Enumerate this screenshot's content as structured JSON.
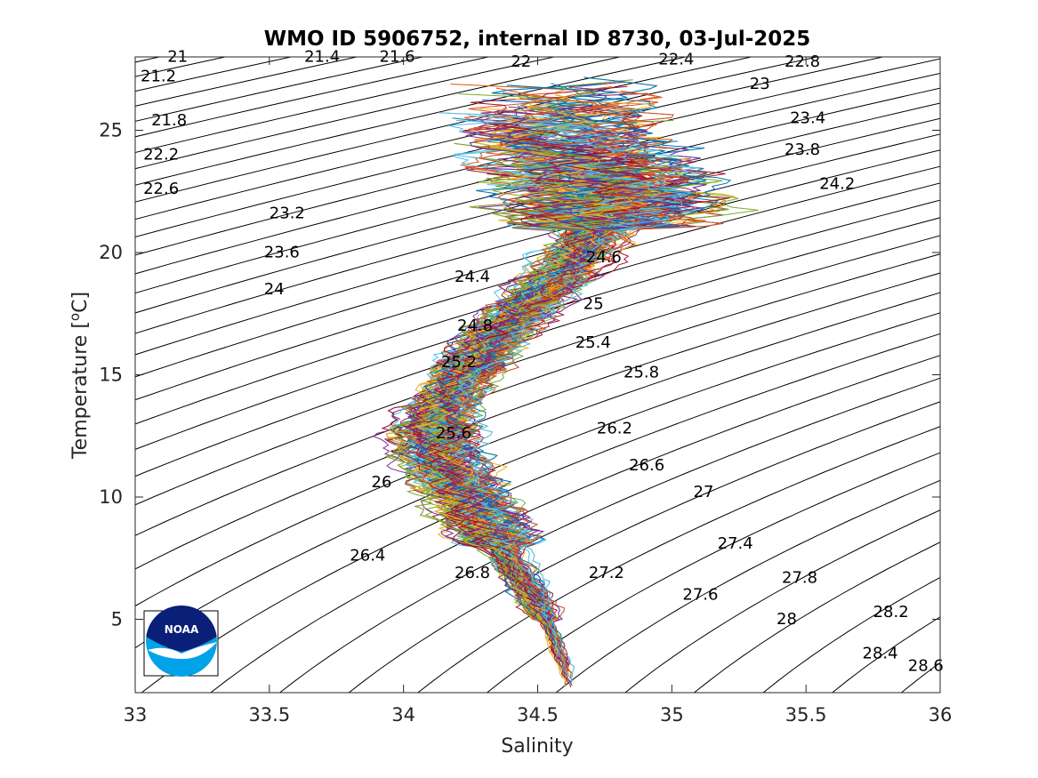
{
  "chart_data": {
    "type": "line",
    "title": "WMO ID 5906752, internal ID 8730, 03-Jul-2025",
    "xlabel": "Salinity",
    "ylabel_main": "Temperature [",
    "ylabel_sup": "o",
    "ylabel_end": "C]",
    "xlim": [
      33,
      36
    ],
    "ylim": [
      2,
      28
    ],
    "xticks": [
      33,
      33.5,
      34,
      34.5,
      35,
      35.5,
      36
    ],
    "xtick_labels": [
      "33",
      "33.5",
      "34",
      "34.5",
      "35",
      "35.5",
      "36"
    ],
    "yticks": [
      5,
      10,
      15,
      20,
      25
    ],
    "ytick_labels": [
      "5",
      "10",
      "15",
      "20",
      "25"
    ],
    "grid": false,
    "density_isopycnals": [
      21,
      21.2,
      21.4,
      21.6,
      21.8,
      22,
      22.2,
      22.4,
      22.6,
      22.8,
      23,
      23.2,
      23.4,
      23.6,
      23.8,
      24,
      24.2,
      24.4,
      24.6,
      24.8,
      25,
      25.2,
      25.4,
      25.6,
      25.8,
      26,
      26.2,
      26.4,
      26.6,
      26.8,
      27,
      27.2,
      27.4,
      27.6,
      27.8,
      28,
      28.2,
      28.4,
      28.6
    ],
    "isopycnal_labels": [
      {
        "text": "21",
        "s": 33.12,
        "t": 27.8
      },
      {
        "text": "21.2",
        "s": 33.02,
        "t": 27.0
      },
      {
        "text": "21.4",
        "s": 33.63,
        "t": 27.8
      },
      {
        "text": "21.6",
        "s": 33.91,
        "t": 27.8
      },
      {
        "text": "22",
        "s": 34.4,
        "t": 27.6
      },
      {
        "text": "22.4",
        "s": 34.95,
        "t": 27.7
      },
      {
        "text": "22.8",
        "s": 35.42,
        "t": 27.6
      },
      {
        "text": "23",
        "s": 35.29,
        "t": 26.7
      },
      {
        "text": "23.4",
        "s": 35.44,
        "t": 25.3
      },
      {
        "text": "23.8",
        "s": 35.42,
        "t": 24.0
      },
      {
        "text": "24.2",
        "s": 35.55,
        "t": 22.6
      },
      {
        "text": "21.8",
        "s": 33.06,
        "t": 25.2
      },
      {
        "text": "22.2",
        "s": 33.03,
        "t": 23.8
      },
      {
        "text": "22.6",
        "s": 33.03,
        "t": 22.4
      },
      {
        "text": "23.2",
        "s": 33.5,
        "t": 21.4
      },
      {
        "text": "23.6",
        "s": 33.48,
        "t": 19.8
      },
      {
        "text": "24",
        "s": 33.48,
        "t": 18.3
      },
      {
        "text": "24.4",
        "s": 34.19,
        "t": 18.8
      },
      {
        "text": "24.6",
        "s": 34.68,
        "t": 19.6
      },
      {
        "text": "24.8",
        "s": 34.2,
        "t": 16.8
      },
      {
        "text": "25",
        "s": 34.67,
        "t": 17.7
      },
      {
        "text": "25.4",
        "s": 34.64,
        "t": 16.1
      },
      {
        "text": "25.2",
        "s": 34.14,
        "t": 15.3
      },
      {
        "text": "25.8",
        "s": 34.82,
        "t": 14.9
      },
      {
        "text": "25.6",
        "s": 34.12,
        "t": 12.4
      },
      {
        "text": "26.2",
        "s": 34.72,
        "t": 12.6
      },
      {
        "text": "26.6",
        "s": 34.84,
        "t": 11.1
      },
      {
        "text": "26",
        "s": 33.88,
        "t": 10.4
      },
      {
        "text": "27",
        "s": 35.08,
        "t": 10.0
      },
      {
        "text": "27.4",
        "s": 35.17,
        "t": 7.9
      },
      {
        "text": "26.4",
        "s": 33.8,
        "t": 7.4
      },
      {
        "text": "26.8",
        "s": 34.19,
        "t": 6.7
      },
      {
        "text": "27.2",
        "s": 34.69,
        "t": 6.7
      },
      {
        "text": "27.8",
        "s": 35.41,
        "t": 6.5
      },
      {
        "text": "27.6",
        "s": 35.04,
        "t": 5.8
      },
      {
        "text": "28",
        "s": 35.39,
        "t": 4.8
      },
      {
        "text": "28.2",
        "s": 35.75,
        "t": 5.1
      },
      {
        "text": "28.4",
        "s": 35.71,
        "t": 3.4
      },
      {
        "text": "28.6",
        "s": 35.88,
        "t": 2.9
      }
    ],
    "mean_profile": [
      {
        "s": 34.62,
        "t": 2.2
      },
      {
        "s": 34.6,
        "t": 3.0
      },
      {
        "s": 34.57,
        "t": 4.0
      },
      {
        "s": 34.53,
        "t": 5.0
      },
      {
        "s": 34.48,
        "t": 6.0
      },
      {
        "s": 34.42,
        "t": 7.0
      },
      {
        "s": 34.36,
        "t": 8.0
      },
      {
        "s": 34.3,
        "t": 9.0
      },
      {
        "s": 34.25,
        "t": 10.0
      },
      {
        "s": 34.17,
        "t": 11.0
      },
      {
        "s": 34.12,
        "t": 12.0
      },
      {
        "s": 34.12,
        "t": 13.0
      },
      {
        "s": 34.16,
        "t": 14.0
      },
      {
        "s": 34.22,
        "t": 15.0
      },
      {
        "s": 34.3,
        "t": 16.0
      },
      {
        "s": 34.38,
        "t": 17.0
      },
      {
        "s": 34.48,
        "t": 18.0
      },
      {
        "s": 34.58,
        "t": 19.0
      },
      {
        "s": 34.66,
        "t": 20.0
      },
      {
        "s": 34.72,
        "t": 21.0
      },
      {
        "s": 34.76,
        "t": 22.0
      },
      {
        "s": 34.72,
        "t": 23.0
      },
      {
        "s": 34.62,
        "t": 24.0
      },
      {
        "s": 34.55,
        "t": 25.0
      },
      {
        "s": 34.6,
        "t": 26.0
      }
    ],
    "series_colors": [
      "#0072bd",
      "#d95319",
      "#edb120",
      "#7e2f8e",
      "#77ac30",
      "#4dbeee",
      "#a2142f"
    ],
    "profile_count": 140
  },
  "logo": {
    "text": "NOAA",
    "colors": {
      "navy": "#0a1f78",
      "sky": "#00a3e8",
      "white": "#ffffff"
    }
  }
}
